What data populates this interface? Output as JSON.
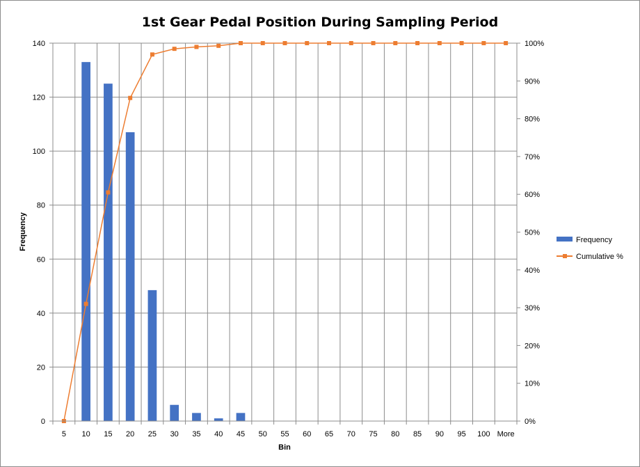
{
  "chart_data": {
    "type": "bar",
    "title": "1st Gear Pedal Position During Sampling Period",
    "xlabel": "Bin",
    "ylabel": "Frequency",
    "categories": [
      "5",
      "10",
      "15",
      "20",
      "25",
      "30",
      "35",
      "40",
      "45",
      "50",
      "55",
      "60",
      "65",
      "70",
      "75",
      "80",
      "85",
      "90",
      "95",
      "100",
      "More"
    ],
    "ylim": [
      0,
      140
    ],
    "y_ticks": [
      0,
      20,
      40,
      60,
      80,
      100,
      120,
      140
    ],
    "y2lim": [
      0,
      1
    ],
    "y2_ticks": [
      "0%",
      "10%",
      "20%",
      "30%",
      "40%",
      "50%",
      "60%",
      "70%",
      "80%",
      "90%",
      "100%"
    ],
    "series": [
      {
        "name": "Frequency",
        "kind": "bar",
        "axis": "primary",
        "color": "#4472C4",
        "values": [
          0,
          133,
          125,
          107,
          48.5,
          6,
          3,
          1,
          3,
          0,
          0,
          0,
          0,
          0,
          0,
          0,
          0,
          0,
          0,
          0,
          0
        ]
      },
      {
        "name": "Cumulative %",
        "kind": "line",
        "axis": "secondary",
        "color": "#ED7D31",
        "values": [
          0,
          0.31,
          0.605,
          0.855,
          0.97,
          0.985,
          0.99,
          0.993,
          1,
          1,
          1,
          1,
          1,
          1,
          1,
          1,
          1,
          1,
          1,
          1,
          1
        ]
      }
    ],
    "grid": true,
    "legend_position": "right"
  }
}
